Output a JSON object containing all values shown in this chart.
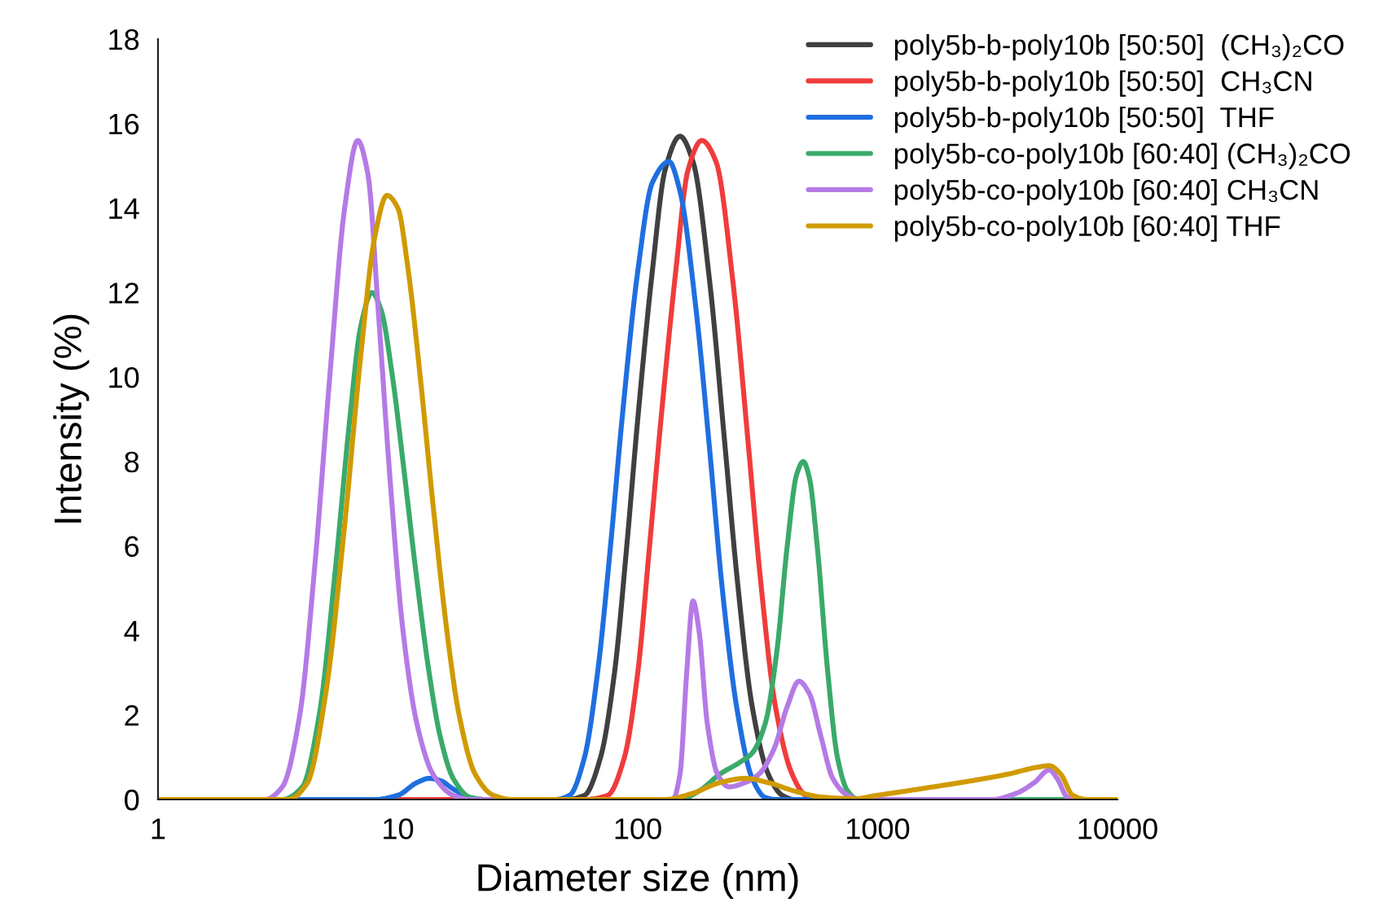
{
  "chart_data": {
    "type": "line",
    "xlabel": "Diameter size (nm)",
    "ylabel": "Intensity (%)",
    "log": "x",
    "xlim": [
      1,
      10000
    ],
    "xticks": [
      1,
      10,
      100,
      1000,
      10000
    ],
    "ylim": [
      0,
      18
    ],
    "yticks": [
      0,
      2,
      4,
      6,
      8,
      10,
      12,
      14,
      16,
      18
    ],
    "grid": false,
    "legend": "top right",
    "marker": "none",
    "line_style": "solid",
    "series": [
      {
        "name": "poly5b-b-poly10b [50:50]  (CH₃)₂CO",
        "color": "#404040",
        "x": [
          1,
          50,
          60,
          70,
          80,
          90,
          100,
          115,
          130,
          150,
          170,
          200,
          230,
          260,
          300,
          350,
          400,
          450,
          10000
        ],
        "values": [
          0,
          0,
          0.1,
          1,
          3,
          6,
          9,
          12.5,
          14.9,
          15.7,
          15.1,
          12.2,
          8.5,
          5.2,
          2.2,
          0.6,
          0.1,
          0,
          0
        ]
      },
      {
        "name": "poly5b-b-poly10b [50:50]  CH₃CN",
        "color": "#f03c3c",
        "x": [
          1,
          60,
          75,
          88,
          100,
          112,
          125,
          144,
          162,
          185,
          212,
          250,
          288,
          325,
          375,
          440,
          500,
          560,
          10000
        ],
        "values": [
          0,
          0,
          0.1,
          1,
          3,
          6,
          9,
          12.5,
          14.9,
          15.6,
          15.1,
          12.2,
          8.5,
          5.2,
          2.2,
          0.6,
          0.1,
          0,
          0
        ]
      },
      {
        "name": "poly5b-b-poly10b [50:50]  THF",
        "color": "#1f6fe0",
        "x": [
          1,
          8,
          10,
          12,
          13.5,
          15,
          17,
          20,
          23,
          45,
          52,
          60,
          68,
          77,
          86,
          100,
          115,
          135,
          150,
          175,
          200,
          225,
          260,
          300,
          340,
          380,
          10000
        ],
        "values": [
          0,
          0,
          0.1,
          0.4,
          0.5,
          0.45,
          0.25,
          0.05,
          0,
          0,
          0.1,
          1,
          3,
          6,
          9,
          12.5,
          14.6,
          15.1,
          14.4,
          11.6,
          8.2,
          5,
          2.1,
          0.5,
          0.05,
          0,
          0
        ]
      },
      {
        "name": "poly5b-co-poly10b [60:40] (CH₃)₂CO",
        "color": "#3aaa6a",
        "x": [
          1,
          3.3,
          4,
          4.7,
          5.5,
          6.3,
          7,
          7.8,
          8.5,
          9.5,
          10.5,
          12,
          13.5,
          15,
          17,
          20,
          23,
          150,
          180,
          220,
          270,
          300,
          340,
          380,
          420,
          460,
          490,
          520,
          560,
          620,
          680,
          750,
          830,
          10000
        ],
        "values": [
          0,
          0,
          0.3,
          2,
          5.5,
          9,
          11.2,
          12,
          11.6,
          10,
          8,
          5.2,
          3,
          1.5,
          0.5,
          0.05,
          0,
          0,
          0.2,
          0.6,
          0.9,
          1.1,
          1.8,
          3.5,
          6,
          7.7,
          8,
          7.6,
          6,
          3,
          1,
          0.2,
          0,
          0
        ]
      },
      {
        "name": "poly5b-co-poly10b [60:40] CH₃CN",
        "color": "#b57ae6",
        "x": [
          1,
          2.8,
          3.3,
          3.9,
          4.5,
          5.2,
          6,
          6.8,
          7.5,
          8.3,
          9.3,
          10.5,
          12,
          14,
          17,
          20,
          140,
          150,
          160,
          170,
          180,
          195,
          215,
          240,
          280,
          320,
          370,
          420,
          470,
          520,
          580,
          650,
          750,
          850,
          3000,
          3800,
          4500,
          5200,
          5600,
          6200,
          7000,
          10000
        ],
        "values": [
          0,
          0,
          0.3,
          2,
          5.5,
          10,
          14,
          15.6,
          14.8,
          11.5,
          7.5,
          4,
          1.8,
          0.6,
          0.1,
          0,
          0,
          0.6,
          3,
          4.7,
          4,
          1.8,
          0.6,
          0.3,
          0.4,
          0.6,
          1.2,
          2.2,
          2.8,
          2.5,
          1.5,
          0.5,
          0.1,
          0,
          0,
          0.15,
          0.4,
          0.7,
          0.5,
          0.05,
          0,
          0
        ]
      },
      {
        "name": "poly5b-co-poly10b [60:40] THF",
        "color": "#d09a00",
        "x": [
          1,
          3.5,
          4.2,
          5,
          6,
          7,
          8,
          9,
          10,
          11,
          12.5,
          14,
          16,
          18,
          21,
          25,
          30,
          130,
          170,
          220,
          280,
          350,
          450,
          600,
          800,
          1000,
          1500,
          2500,
          3500,
          4500,
          5200,
          5800,
          6500,
          7500,
          10000
        ],
        "values": [
          0,
          0,
          0.4,
          2.5,
          6.5,
          10.5,
          13.3,
          14.3,
          14,
          12.6,
          9.8,
          7,
          4,
          2,
          0.6,
          0.1,
          0,
          0,
          0.15,
          0.4,
          0.5,
          0.4,
          0.2,
          0.05,
          0.02,
          0.1,
          0.25,
          0.45,
          0.6,
          0.75,
          0.8,
          0.6,
          0.1,
          0,
          0
        ]
      }
    ]
  }
}
